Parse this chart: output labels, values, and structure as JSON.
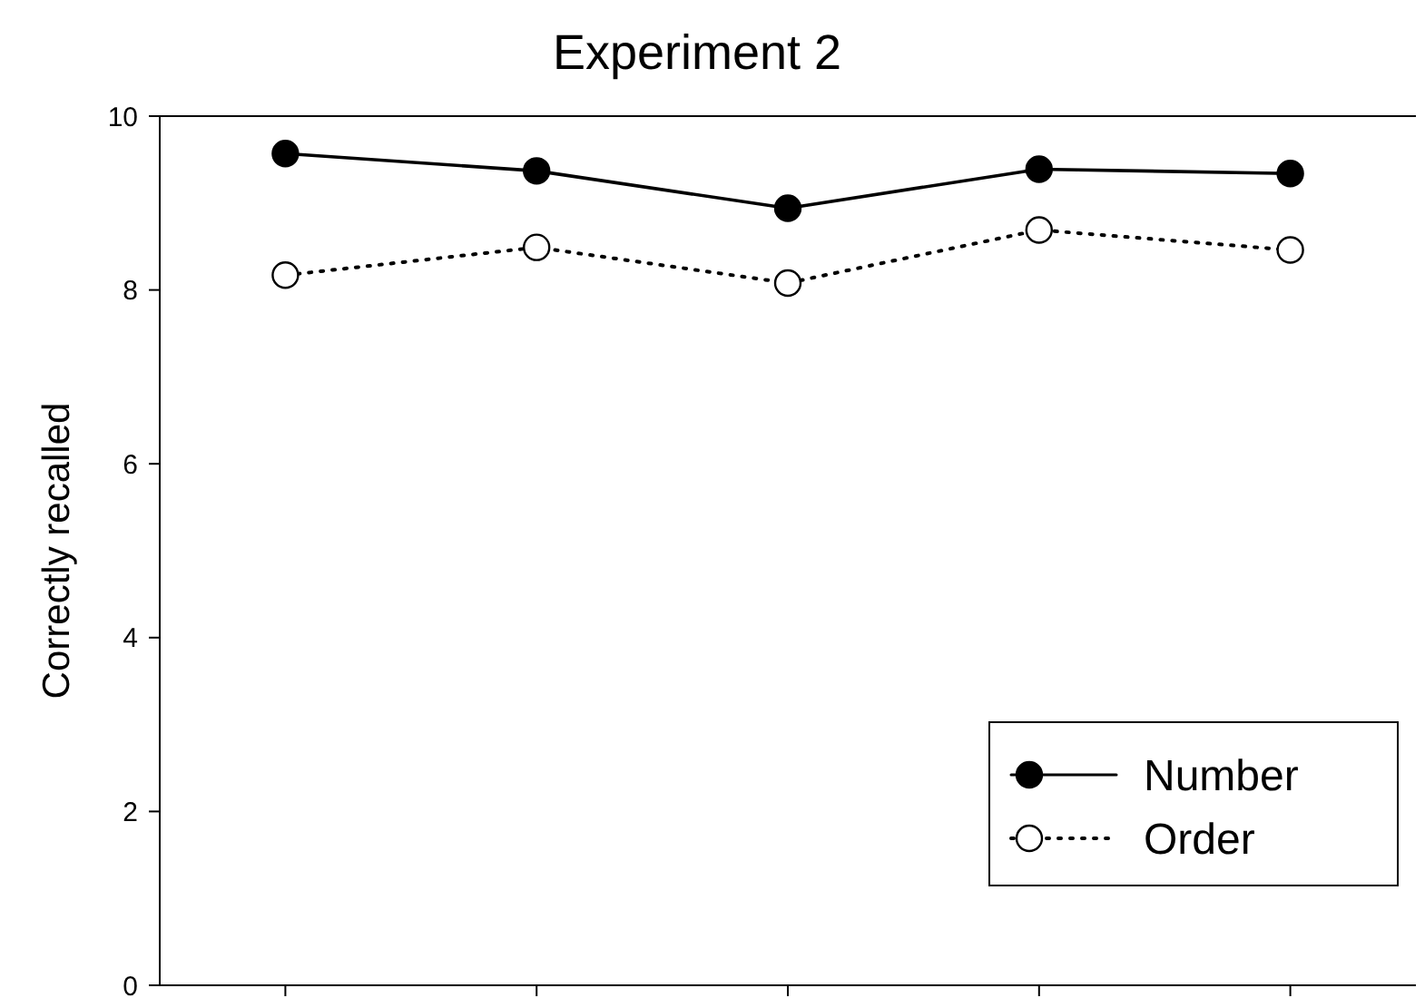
{
  "chart_data": {
    "type": "line",
    "title": "Experiment 2",
    "ylabel": "Correctly recalled",
    "categories": [
      null,
      null,
      null,
      null,
      null
    ],
    "series": [
      {
        "name": "Number",
        "color": "#000000",
        "line_style": "solid",
        "values": [
          9.57,
          9.37,
          8.94,
          9.39,
          9.34
        ]
      },
      {
        "name": "Order",
        "color": "#000000",
        "line_style": "dotted",
        "values": [
          8.17,
          8.49,
          8.08,
          8.69,
          8.46
        ]
      }
    ],
    "ylim": [
      0,
      10
    ],
    "yticks": [
      0,
      2,
      4,
      6,
      8,
      10
    ],
    "tick_labels": "y",
    "marker": "circle",
    "legend": "bottom right"
  }
}
